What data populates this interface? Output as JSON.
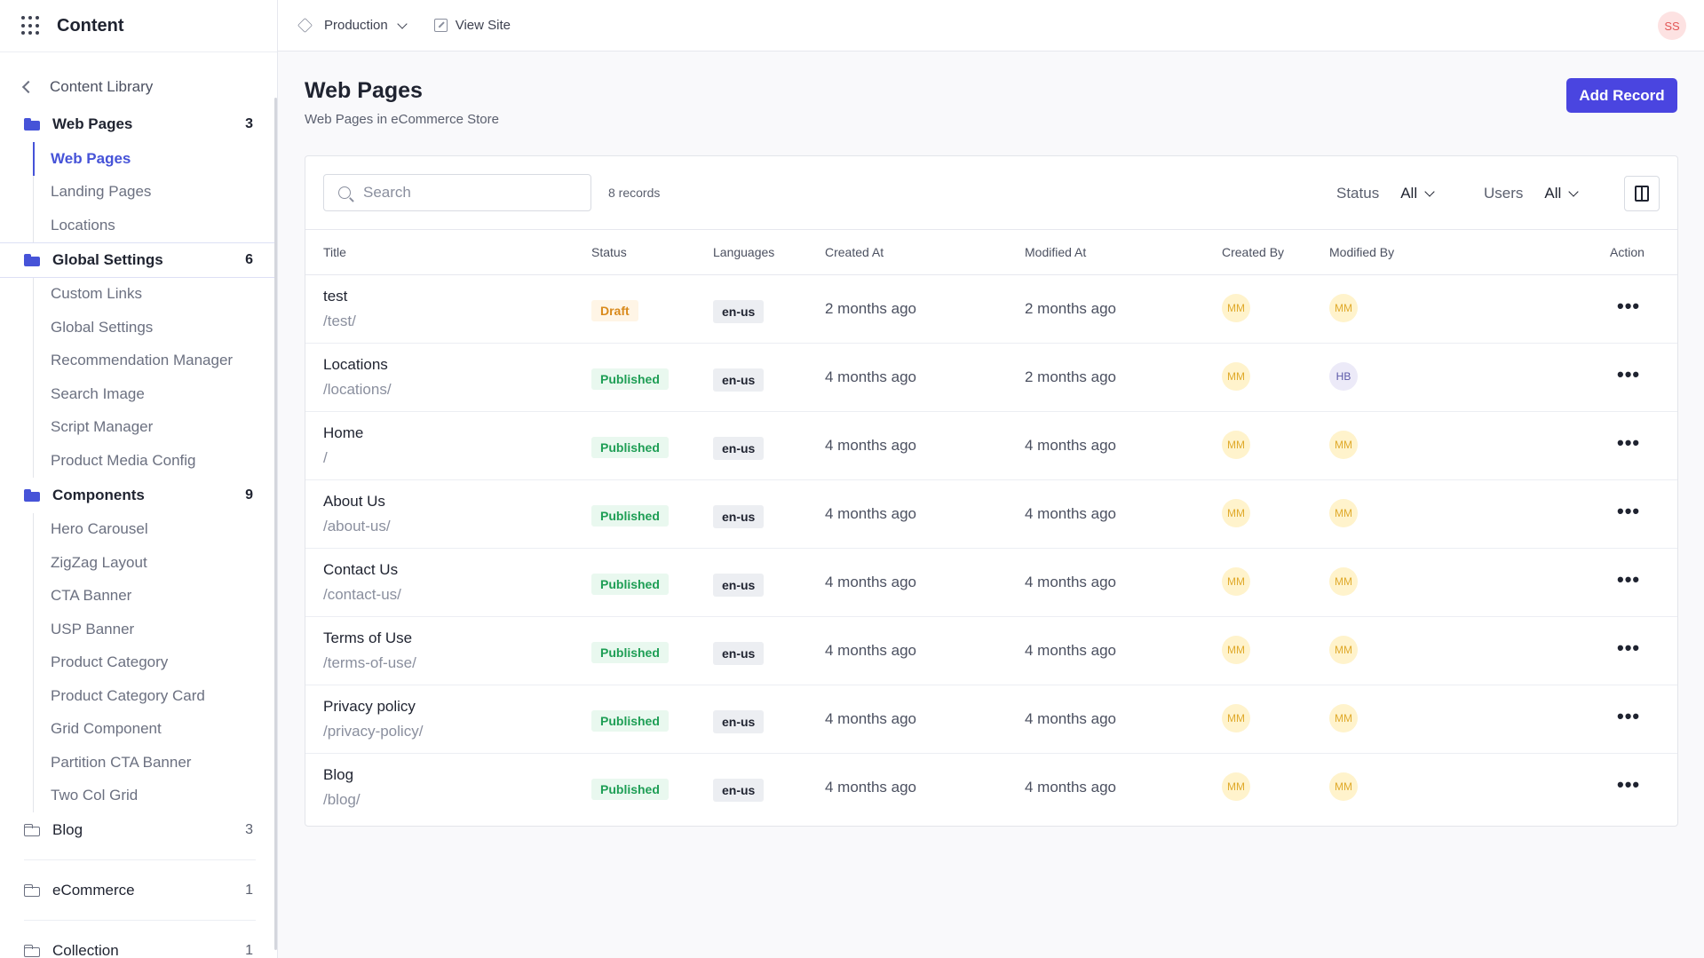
{
  "sidebar": {
    "title": "Content",
    "back_label": "Content Library",
    "groups": [
      {
        "label": "Web Pages",
        "count": "3",
        "items": [
          "Web Pages",
          "Landing Pages",
          "Locations"
        ],
        "active": "Web Pages"
      },
      {
        "label": "Global Settings",
        "count": "6",
        "items": [
          "Custom Links",
          "Global Settings",
          "Recommendation Manager",
          "Search Image",
          "Script Manager",
          "Product Media Config"
        ]
      },
      {
        "label": "Components",
        "count": "9",
        "items": [
          "Hero Carousel",
          "ZigZag Layout",
          "CTA Banner",
          "USP Banner",
          "Product Category",
          "Product Category Card",
          "Grid Component",
          "Partition CTA Banner",
          "Two Col Grid"
        ]
      },
      {
        "label": "Blog",
        "count": "3"
      },
      {
        "label": "eCommerce",
        "count": "1"
      },
      {
        "label": "Collection",
        "count": "1"
      }
    ]
  },
  "topbar": {
    "environment": "Production",
    "view_site": "View Site",
    "user_initials": "SS"
  },
  "page": {
    "title": "Web Pages",
    "subtitle": "Web Pages in eCommerce Store",
    "add_button": "Add Record"
  },
  "toolbar": {
    "search_placeholder": "Search",
    "records_count": "8 records",
    "status_label": "Status",
    "status_value": "All",
    "users_label": "Users",
    "users_value": "All"
  },
  "table": {
    "columns": [
      "Title",
      "Status",
      "Languages",
      "Created At",
      "Modified At",
      "Created By",
      "Modified By",
      "Action"
    ],
    "rows": [
      {
        "title": "test",
        "path": "/test/",
        "status": "Draft",
        "lang": "en-us",
        "created": "2 months ago",
        "modified": "2 months ago",
        "created_by": "MM",
        "modified_by": "MM"
      },
      {
        "title": "Locations",
        "path": "/locations/",
        "status": "Published",
        "lang": "en-us",
        "created": "4 months ago",
        "modified": "2 months ago",
        "created_by": "MM",
        "modified_by": "HB"
      },
      {
        "title": "Home",
        "path": "/",
        "status": "Published",
        "lang": "en-us",
        "created": "4 months ago",
        "modified": "4 months ago",
        "created_by": "MM",
        "modified_by": "MM"
      },
      {
        "title": "About Us",
        "path": "/about-us/",
        "status": "Published",
        "lang": "en-us",
        "created": "4 months ago",
        "modified": "4 months ago",
        "created_by": "MM",
        "modified_by": "MM"
      },
      {
        "title": "Contact Us",
        "path": "/contact-us/",
        "status": "Published",
        "lang": "en-us",
        "created": "4 months ago",
        "modified": "4 months ago",
        "created_by": "MM",
        "modified_by": "MM"
      },
      {
        "title": "Terms of Use",
        "path": "/terms-of-use/",
        "status": "Published",
        "lang": "en-us",
        "created": "4 months ago",
        "modified": "4 months ago",
        "created_by": "MM",
        "modified_by": "MM"
      },
      {
        "title": "Privacy policy",
        "path": "/privacy-policy/",
        "status": "Published",
        "lang": "en-us",
        "created": "4 months ago",
        "modified": "4 months ago",
        "created_by": "MM",
        "modified_by": "MM"
      },
      {
        "title": "Blog",
        "path": "/blog/",
        "status": "Published",
        "lang": "en-us",
        "created": "4 months ago",
        "modified": "4 months ago",
        "created_by": "MM",
        "modified_by": "MM"
      }
    ],
    "action_glyph": "•••"
  },
  "colors": {
    "accent": "#4a45e0",
    "published": "#1e9e55",
    "draft": "#d98a1c"
  }
}
